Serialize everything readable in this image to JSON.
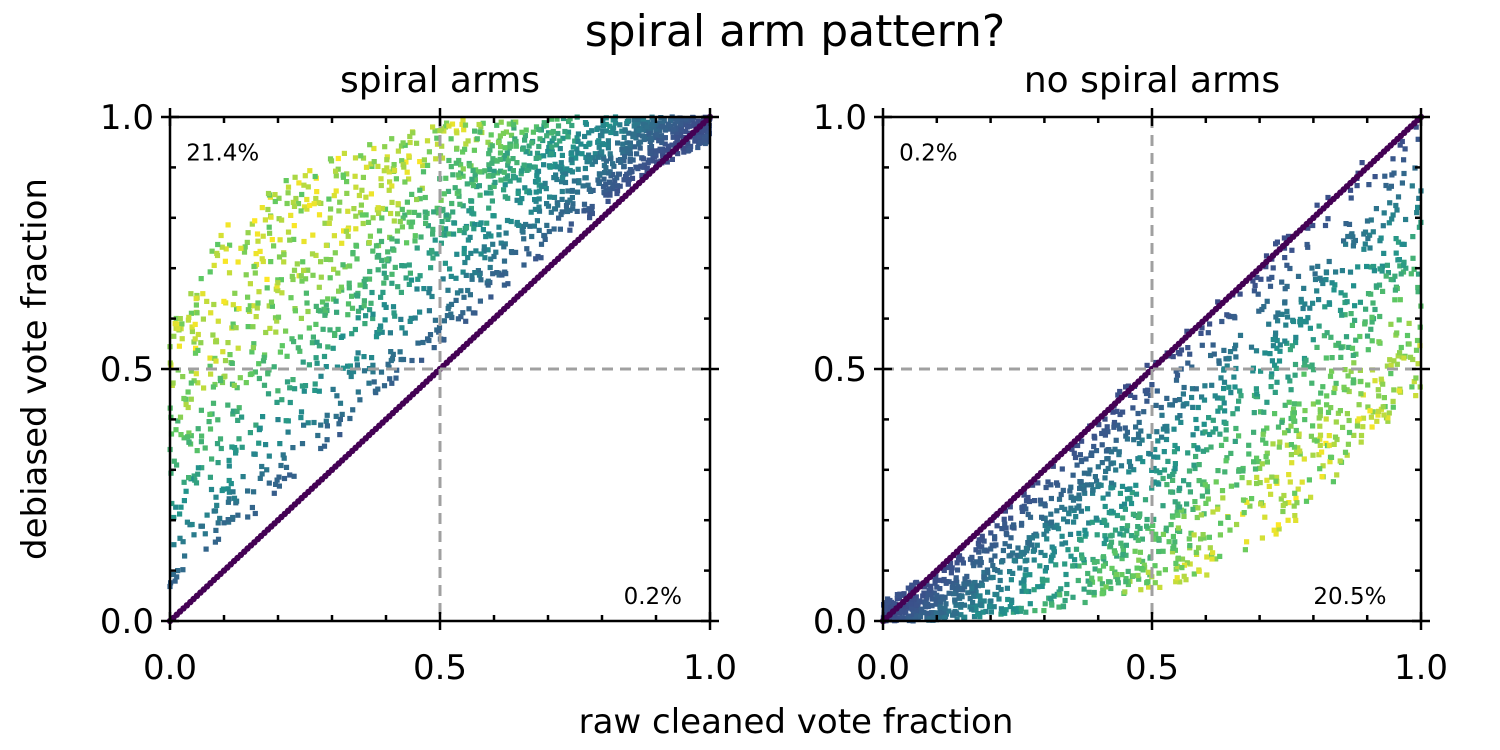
{
  "figure": {
    "title": "spiral arm pattern?",
    "xlabel": "raw cleaned vote fraction",
    "ylabel": "debiased vote fraction"
  },
  "chart_data": [
    {
      "type": "scatter",
      "title": "spiral arms",
      "xlim": [
        0.0,
        1.0
      ],
      "ylim": [
        0.0,
        1.0
      ],
      "xticks": [
        "0.0",
        "0.5",
        "1.0"
      ],
      "yticks": [
        "0.0",
        "0.5",
        "1.0"
      ],
      "reference_lines": {
        "x": 0.5,
        "y": 0.5,
        "color": "#a0a0a0",
        "style": "dashed"
      },
      "annotations": [
        {
          "text": "21.4%",
          "x": 0.03,
          "y": 0.93
        },
        {
          "text": "0.2%",
          "x": 0.84,
          "y": 0.05
        }
      ],
      "identity_line": {
        "from": [
          0.0,
          0.0
        ],
        "to": [
          1.0,
          1.0
        ],
        "color": "#440154"
      },
      "point_cloud": {
        "description": "debiased values above raw values",
        "bands": [
          {
            "x": 0.0,
            "ymin": 0.05,
            "ymax": 0.58
          },
          {
            "x": 0.1,
            "ymin": 0.15,
            "ymax": 0.78
          },
          {
            "x": 0.2,
            "ymin": 0.25,
            "ymax": 0.87
          },
          {
            "x": 0.3,
            "ymin": 0.35,
            "ymax": 0.92
          },
          {
            "x": 0.4,
            "ymin": 0.45,
            "ymax": 0.96
          },
          {
            "x": 0.5,
            "ymin": 0.55,
            "ymax": 0.99
          },
          {
            "x": 0.6,
            "ymin": 0.64,
            "ymax": 1.0
          },
          {
            "x": 0.7,
            "ymin": 0.73,
            "ymax": 1.0
          },
          {
            "x": 0.8,
            "ymin": 0.82,
            "ymax": 1.0
          },
          {
            "x": 0.9,
            "ymin": 0.9,
            "ymax": 1.0
          },
          {
            "x": 1.0,
            "ymin": 0.95,
            "ymax": 1.0
          }
        ],
        "color_scale": [
          "#440154",
          "#3b528b",
          "#21918c",
          "#5ec962",
          "#fde725"
        ]
      }
    },
    {
      "type": "scatter",
      "title": "no spiral arms",
      "xlim": [
        0.0,
        1.0
      ],
      "ylim": [
        0.0,
        1.0
      ],
      "xticks": [
        "0.0",
        "0.5",
        "1.0"
      ],
      "yticks": [
        "0.0",
        "0.5",
        "1.0"
      ],
      "reference_lines": {
        "x": 0.5,
        "y": 0.5,
        "color": "#a0a0a0",
        "style": "dashed"
      },
      "annotations": [
        {
          "text": "0.2%",
          "x": 0.03,
          "y": 0.93
        },
        {
          "text": "20.5%",
          "x": 0.8,
          "y": 0.05
        }
      ],
      "identity_line": {
        "from": [
          0.0,
          0.0
        ],
        "to": [
          1.0,
          1.0
        ],
        "color": "#440154"
      },
      "point_cloud": {
        "description": "debiased values below raw values",
        "bands": [
          {
            "x": 0.0,
            "ymin": 0.0,
            "ymax": 0.04
          },
          {
            "x": 0.1,
            "ymin": 0.0,
            "ymax": 0.1
          },
          {
            "x": 0.2,
            "ymin": 0.01,
            "ymax": 0.2
          },
          {
            "x": 0.3,
            "ymin": 0.02,
            "ymax": 0.3
          },
          {
            "x": 0.4,
            "ymin": 0.04,
            "ymax": 0.42
          },
          {
            "x": 0.5,
            "ymin": 0.06,
            "ymax": 0.52
          },
          {
            "x": 0.6,
            "ymin": 0.09,
            "ymax": 0.62
          },
          {
            "x": 0.7,
            "ymin": 0.14,
            "ymax": 0.72
          },
          {
            "x": 0.8,
            "ymin": 0.22,
            "ymax": 0.82
          },
          {
            "x": 0.9,
            "ymin": 0.36,
            "ymax": 0.92
          },
          {
            "x": 1.0,
            "ymin": 0.45,
            "ymax": 1.0
          }
        ],
        "color_scale": [
          "#440154",
          "#3b528b",
          "#21918c",
          "#5ec962",
          "#fde725"
        ]
      }
    }
  ]
}
